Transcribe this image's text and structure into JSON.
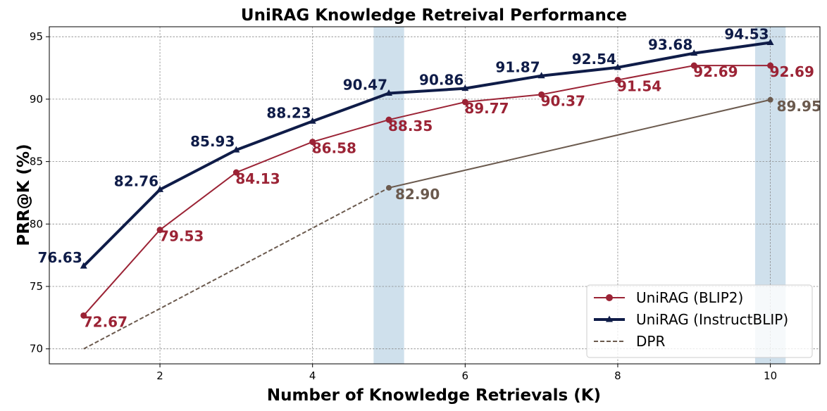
{
  "chart_data": {
    "type": "line",
    "title": "UniRAG Knowledge Retreival Performance",
    "xlabel": "Number of Knowledge Retrievals (K)",
    "ylabel": "PRR@K (%)",
    "xlim": [
      0.55,
      10.65
    ],
    "ylim": [
      68.8,
      95.8
    ],
    "xticks": [
      2,
      4,
      6,
      8,
      10
    ],
    "xtick_labels": [
      "2",
      "4",
      "6",
      "8",
      "10"
    ],
    "yticks": [
      70,
      75,
      80,
      85,
      90,
      95
    ],
    "ytick_labels": [
      "70",
      "75",
      "80",
      "85",
      "90",
      "95"
    ],
    "grid": true,
    "legend_position": "lower-right",
    "highlight_bands": [
      [
        4.8,
        5.2
      ],
      [
        9.8,
        10.2
      ]
    ],
    "highlight_color": "#cfe0ec",
    "series": [
      {
        "name": "UniRAG (BLIP2)",
        "color": "#9b2335",
        "marker": "circle",
        "line_style": "solid",
        "x": [
          1,
          2,
          3,
          4,
          5,
          6,
          7,
          8,
          9,
          10
        ],
        "values": [
          72.67,
          79.53,
          84.13,
          86.58,
          88.35,
          89.77,
          90.37,
          91.54,
          92.69,
          92.69
        ],
        "labels": [
          "72.67",
          "79.53",
          "84.13",
          "86.58",
          "88.35",
          "89.77",
          "90.37",
          "91.54",
          "92.69",
          "92.69"
        ]
      },
      {
        "name": "UniRAG (InstructBLIP)",
        "color": "#0f1c48",
        "marker": "triangle",
        "line_style": "solid-thick",
        "x": [
          1,
          2,
          3,
          4,
          5,
          6,
          7,
          8,
          9,
          10
        ],
        "values": [
          76.63,
          82.76,
          85.93,
          88.23,
          90.47,
          90.86,
          91.87,
          92.54,
          93.68,
          94.53
        ],
        "labels": [
          "76.63",
          "82.76",
          "85.93",
          "88.23",
          "90.47",
          "90.86",
          "91.87",
          "92.54",
          "93.68",
          "94.53"
        ]
      },
      {
        "name": "DPR",
        "color": "#6b5a4e",
        "marker": "circle",
        "line_style": "dashed-then-solid",
        "x": [
          1,
          5,
          10
        ],
        "values": [
          70.0,
          82.9,
          89.95
        ],
        "labels": [
          "",
          "82.90",
          "89.95"
        ]
      }
    ]
  }
}
